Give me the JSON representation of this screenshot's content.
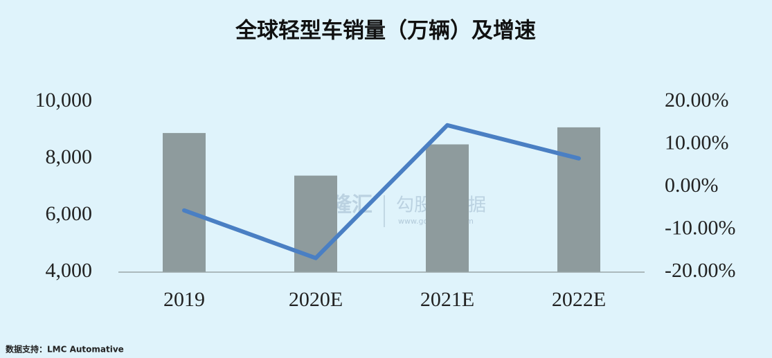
{
  "chart_data": {
    "type": "bar_line",
    "title": "全球轻型车销量（万辆）及增速",
    "categories": [
      "2019",
      "2020E",
      "2021E",
      "2022E"
    ],
    "series": [
      {
        "name": "销量",
        "type": "bar",
        "color": "#8e9b9d",
        "values": [
          8900,
          7400,
          8500,
          9100
        ]
      },
      {
        "name": "增速",
        "type": "line",
        "axis": "y2",
        "color": "#4a7fc3",
        "values": [
          -5.5,
          -16.7,
          14.5,
          6.7
        ]
      }
    ],
    "ylim": [
      4000,
      10000
    ],
    "yticks": [
      {
        "value": 4000,
        "label": "4,000"
      },
      {
        "value": 6000,
        "label": "6,000"
      },
      {
        "value": 8000,
        "label": "8,000"
      },
      {
        "value": 10000,
        "label": "10,000"
      }
    ],
    "y2lim": [
      -20,
      20
    ],
    "y2ticks": [
      {
        "value": -20,
        "label": "-20.00%"
      },
      {
        "value": -10,
        "label": "-10.00%"
      },
      {
        "value": 0,
        "label": "0.00%"
      },
      {
        "value": 10,
        "label": "10.00%"
      },
      {
        "value": 20,
        "label": "20.00%"
      }
    ],
    "grid": false,
    "source": "数据支持：LMC Automative",
    "watermarks": [
      "格隆汇",
      "勾股大数据",
      "www.gogudata.com"
    ]
  }
}
